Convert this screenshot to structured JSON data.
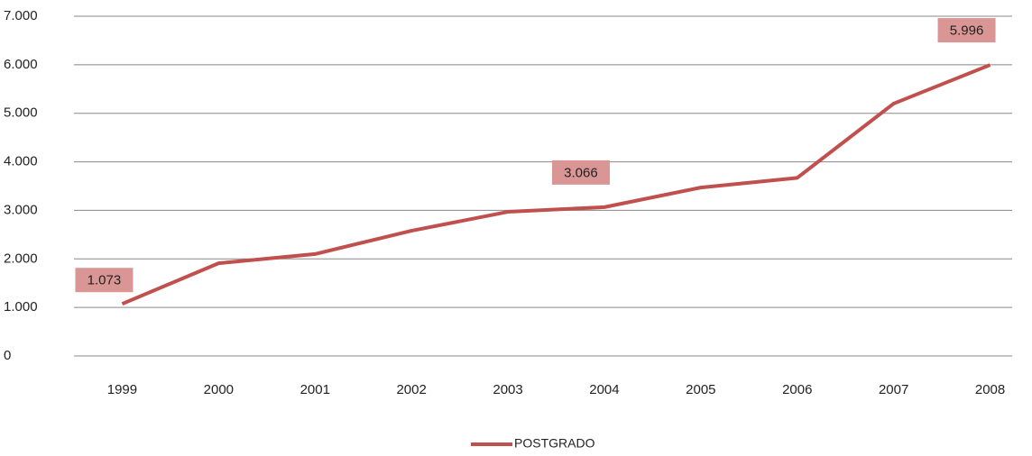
{
  "chart_data": {
    "type": "line",
    "categories": [
      "1999",
      "2000",
      "2001",
      "2002",
      "2003",
      "2004",
      "2005",
      "2006",
      "2007",
      "2008"
    ],
    "series": [
      {
        "name": "POSTGRADO",
        "color": "#c0504d",
        "values": [
          1073,
          1910,
          2100,
          2580,
          2970,
          3066,
          3470,
          3670,
          5200,
          5996
        ],
        "value_labels": [
          "1.073",
          null,
          null,
          null,
          null,
          "3.066",
          null,
          null,
          null,
          "5.996"
        ]
      }
    ],
    "ylim": [
      0,
      7000
    ],
    "yticks": [
      0,
      {
        "value": 1000,
        "label": "1.000"
      },
      {
        "value": 2000,
        "label": "2.000"
      },
      {
        "value": 3000,
        "label": "3.000"
      },
      {
        "value": 4000,
        "label": "4.000"
      },
      {
        "value": 5000,
        "label": "5.000"
      },
      {
        "value": 6000,
        "label": "6.000"
      },
      {
        "value": 7000,
        "label": "7.000"
      }
    ],
    "grid": true,
    "legend": "bottom"
  }
}
